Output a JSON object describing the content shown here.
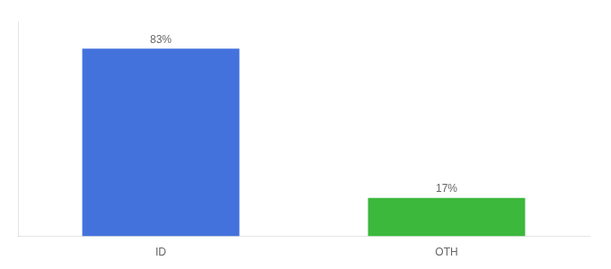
{
  "chart_data": {
    "type": "bar",
    "categories": [
      "ID",
      "OTH"
    ],
    "values": [
      83,
      17
    ],
    "value_labels": [
      "83%",
      "17%"
    ],
    "colors": [
      "#4472DD",
      "#3CB83C"
    ],
    "ylim": [
      0,
      95
    ],
    "grid": false,
    "data_labels": true,
    "tick_labels": "x"
  }
}
